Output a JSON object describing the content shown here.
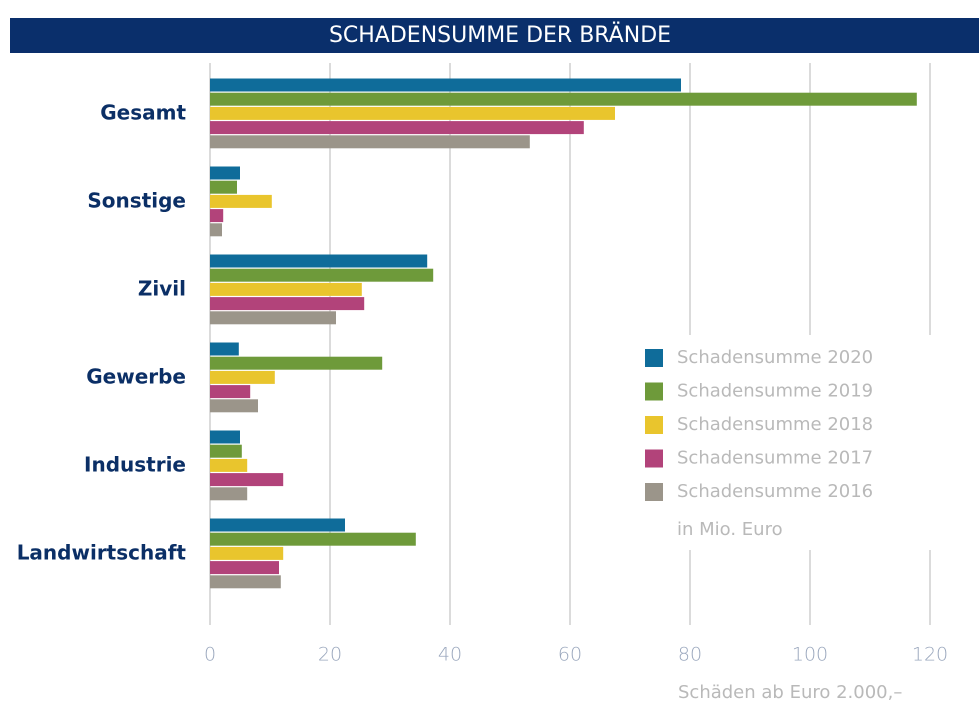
{
  "chart_data": {
    "type": "bar",
    "orientation": "horizontal",
    "title": "SCHADENSUMME DER BRÄNDE",
    "footnote": "Schäden ab Euro 2.000,–",
    "unit_note": "in Mio. Euro",
    "categories": [
      "Gesamt",
      "Sonstige",
      "Zivil",
      "Gewerbe",
      "Industrie",
      "Landwirtschaft"
    ],
    "series": [
      {
        "name": "Schadensumme 2020",
        "color": "#0f6c9a",
        "values": [
          78.5,
          5,
          36.2,
          4.8,
          5,
          22.5
        ]
      },
      {
        "name": "Schadensumme 2019",
        "color": "#6e9a3a",
        "values": [
          117.8,
          4.5,
          37.2,
          28.7,
          5.3,
          34.3
        ]
      },
      {
        "name": "Schadensumme 2018",
        "color": "#e9c52d",
        "values": [
          67.5,
          10.3,
          25.3,
          10.8,
          6.2,
          12.2
        ]
      },
      {
        "name": "Schadensumme 2017",
        "color": "#b2437a",
        "values": [
          62.3,
          2.2,
          25.7,
          6.7,
          12.2,
          11.5
        ]
      },
      {
        "name": "Schadensumme 2016",
        "color": "#9b958a",
        "values": [
          53.3,
          2,
          21,
          8,
          6.2,
          11.8
        ]
      }
    ],
    "xlim": [
      0,
      120
    ],
    "xticks": [
      0,
      20,
      40,
      60,
      80,
      100,
      120
    ],
    "grid": true
  }
}
